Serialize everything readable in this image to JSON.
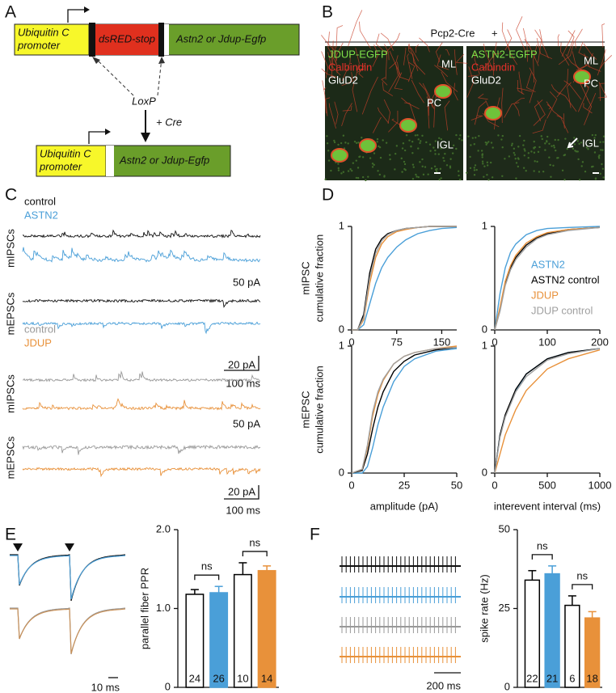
{
  "figure": {
    "panel_labels": [
      "A",
      "B",
      "C",
      "D",
      "E",
      "F"
    ],
    "a": {
      "construct1": {
        "promoter": [
          "Ubiquitin C",
          "promoter"
        ],
        "stop": "dsRED-stop",
        "gene": "Astn2 or Jdup-Egfp"
      },
      "loxp": "LoxP",
      "cre": "+ Cre",
      "construct2": {
        "promoter": [
          "Ubiquitin C",
          "promoter"
        ],
        "gene": "Astn2 or Jdup-Egfp"
      }
    },
    "b": {
      "header": "Pcp2-Cre",
      "plus": "+",
      "left_stains": [
        "JDUP-EGFP",
        "Calbindin",
        "GluD2"
      ],
      "right_stains": [
        "ASTN2-EGFP",
        "Calbindin",
        "GluD2"
      ],
      "left_regions": [
        "ML",
        "PC",
        "IGL"
      ],
      "right_regions": [
        "ML",
        "PC",
        "IGL"
      ]
    },
    "c": {
      "top_legend": [
        "control",
        "ASTN2"
      ],
      "bottom_legend": [
        "control",
        "JDUP"
      ],
      "rows": [
        "mIPSCs",
        "mEPSCs",
        "mIPSCs",
        "mEPSCs"
      ],
      "current_scale": [
        "50 pA",
        "50 pA"
      ],
      "scale_bars": [
        [
          "20 pA",
          "100 ms"
        ],
        [
          "20 pA",
          "100 ms"
        ]
      ]
    },
    "e": {
      "time_scale": "10 ms"
    },
    "f": {
      "time_scale": "200 ms"
    }
  },
  "chart_data": [
    {
      "type": "line",
      "ylabel": [
        "mIPSC",
        "cumulative fraction"
      ],
      "x": [
        0,
        10,
        20,
        30,
        40,
        50,
        60,
        75,
        90,
        110,
        130,
        150,
        175
      ],
      "xlim": [
        0,
        175
      ],
      "xticks": [
        0,
        75,
        150
      ],
      "ylim": [
        0,
        1
      ],
      "yticks": [
        0,
        1
      ],
      "series": [
        {
          "color": "#4a9fd8",
          "values": [
            0,
            0,
            0.05,
            0.25,
            0.45,
            0.6,
            0.7,
            0.8,
            0.87,
            0.93,
            0.96,
            0.98,
            0.99
          ]
        },
        {
          "color": "#000000",
          "values": [
            0,
            0,
            0.15,
            0.55,
            0.78,
            0.88,
            0.93,
            0.96,
            0.98,
            0.99,
            1,
            1,
            1
          ]
        },
        {
          "color": "#e8913a",
          "values": [
            0,
            0,
            0.1,
            0.45,
            0.7,
            0.83,
            0.9,
            0.95,
            0.97,
            0.99,
            1,
            1,
            1
          ]
        },
        {
          "color": "#a0a0a0",
          "values": [
            0,
            0,
            0.12,
            0.5,
            0.74,
            0.86,
            0.92,
            0.96,
            0.98,
            0.99,
            1,
            1,
            1
          ]
        }
      ]
    },
    {
      "type": "line",
      "legend": "right",
      "x": [
        0,
        10,
        20,
        30,
        40,
        60,
        80,
        100,
        140,
        200
      ],
      "xlim": [
        0,
        200
      ],
      "xticks": [
        0,
        100,
        200
      ],
      "ylim": [
        0,
        1
      ],
      "yticks": [
        0,
        1
      ],
      "series": [
        {
          "name": "ASTN2",
          "color": "#4a9fd8",
          "values": [
            0,
            0.35,
            0.6,
            0.75,
            0.83,
            0.92,
            0.96,
            0.98,
            0.99,
            1
          ]
        },
        {
          "name": "ASTN2 control",
          "color": "#000000",
          "values": [
            0,
            0.2,
            0.45,
            0.6,
            0.7,
            0.82,
            0.89,
            0.93,
            0.97,
            0.99
          ]
        },
        {
          "name": "JDUP",
          "color": "#e8913a",
          "values": [
            0,
            0.22,
            0.47,
            0.62,
            0.72,
            0.84,
            0.9,
            0.94,
            0.97,
            0.99
          ]
        },
        {
          "name": "JDUP control",
          "color": "#a0a0a0",
          "values": [
            0,
            0.18,
            0.43,
            0.58,
            0.68,
            0.8,
            0.88,
            0.92,
            0.96,
            0.99
          ]
        }
      ]
    },
    {
      "type": "line",
      "ylabel": [
        "mEPSC",
        "cumulative fraction"
      ],
      "xlabel": "amplitude (pA)",
      "x": [
        0,
        5,
        7.5,
        10,
        12.5,
        15,
        20,
        25,
        30,
        40,
        50
      ],
      "xlim": [
        0,
        50
      ],
      "xticks": [
        0,
        25,
        50
      ],
      "ylim": [
        0,
        1
      ],
      "yticks": [
        0,
        1
      ],
      "series": [
        {
          "color": "#4a9fd8",
          "values": [
            0,
            0,
            0.05,
            0.2,
            0.38,
            0.52,
            0.72,
            0.84,
            0.9,
            0.96,
            0.98
          ]
        },
        {
          "color": "#000000",
          "values": [
            0,
            0.02,
            0.15,
            0.35,
            0.52,
            0.64,
            0.8,
            0.88,
            0.93,
            0.97,
            0.99
          ]
        },
        {
          "color": "#e8913a",
          "values": [
            0,
            0.03,
            0.2,
            0.45,
            0.62,
            0.73,
            0.86,
            0.92,
            0.95,
            0.98,
            1
          ]
        },
        {
          "color": "#a0a0a0",
          "values": [
            0,
            0.03,
            0.22,
            0.48,
            0.64,
            0.74,
            0.86,
            0.92,
            0.95,
            0.98,
            0.99
          ]
        }
      ]
    },
    {
      "type": "line",
      "xlabel": "interevent interval (ms)",
      "x": [
        0,
        50,
        100,
        200,
        300,
        500,
        700,
        1000
      ],
      "xlim": [
        0,
        1000
      ],
      "xticks": [
        0,
        500,
        1000
      ],
      "ylim": [
        0,
        1
      ],
      "yticks": [
        0,
        1
      ],
      "series": [
        {
          "color": "#4a9fd8",
          "values": [
            0,
            0.3,
            0.45,
            0.65,
            0.78,
            0.9,
            0.95,
            0.98
          ]
        },
        {
          "color": "#000000",
          "values": [
            0,
            0.3,
            0.46,
            0.66,
            0.78,
            0.9,
            0.95,
            0.98
          ]
        },
        {
          "color": "#e8913a",
          "values": [
            0,
            0.15,
            0.3,
            0.5,
            0.65,
            0.82,
            0.9,
            0.97
          ]
        },
        {
          "color": "#a0a0a0",
          "values": [
            0,
            0.28,
            0.44,
            0.64,
            0.76,
            0.89,
            0.94,
            0.98
          ]
        }
      ]
    },
    {
      "type": "bar",
      "ylabel": "parallel fiber PPR",
      "values": [
        1.18,
        1.2,
        1.43,
        1.48
      ],
      "errors": [
        0.06,
        0.08,
        0.15,
        0.06
      ],
      "n": [
        24,
        26,
        10,
        14
      ],
      "fills": [
        "#ffffff",
        "#4a9fd8",
        "#ffffff",
        "#e8913a"
      ],
      "edges": [
        "#000000",
        "#4a9fd8",
        "#000000",
        "#e8913a"
      ],
      "annotations": [
        "ns",
        "ns"
      ],
      "ylim": [
        0,
        2
      ],
      "yticks": [
        0,
        {
          "value": 1,
          "label": "1.0"
        },
        {
          "value": 2,
          "label": "2.0"
        }
      ]
    },
    {
      "type": "bar",
      "ylabel": "spike rate (Hz)",
      "values": [
        34,
        36,
        26,
        22
      ],
      "errors": [
        3,
        2.5,
        3,
        2
      ],
      "n": [
        22,
        21,
        6,
        18
      ],
      "fills": [
        "#ffffff",
        "#4a9fd8",
        "#ffffff",
        "#e8913a"
      ],
      "edges": [
        "#000000",
        "#4a9fd8",
        "#000000",
        "#e8913a"
      ],
      "annotations": [
        "ns",
        "ns"
      ],
      "ylim": [
        0,
        50
      ],
      "yticks": [
        0,
        25,
        50
      ]
    }
  ]
}
